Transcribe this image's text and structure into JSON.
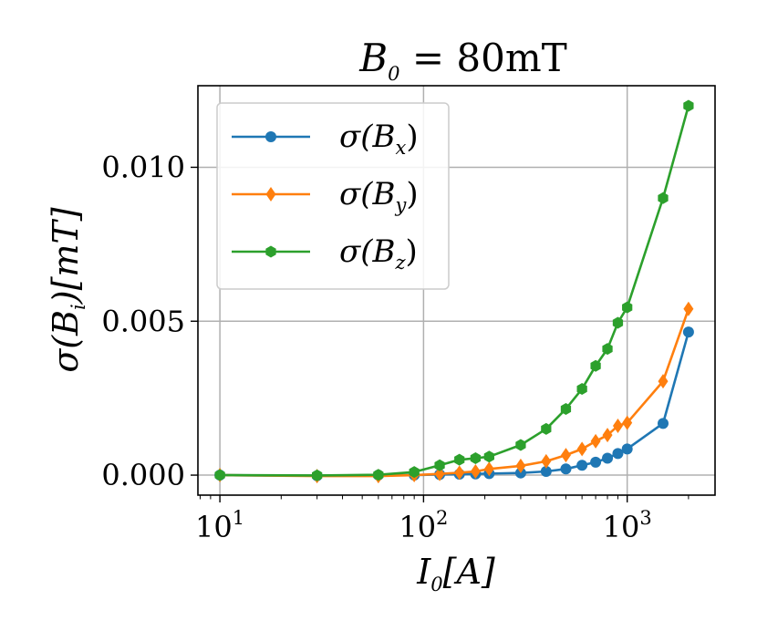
{
  "chart_data": {
    "type": "line",
    "title": {
      "main": "B",
      "sub": "0",
      "rest": " = 80mT"
    },
    "xlabel": {
      "main": "I",
      "sub": "0",
      "rest": "[A]"
    },
    "ylabel": {
      "pre": "σ(B",
      "sub": "i",
      "post": ")[mT]"
    },
    "xscale": "log",
    "xlim": [
      7.8,
      2700
    ],
    "ylim": [
      -0.00065,
      0.01265
    ],
    "x_ticks": [
      {
        "value": 10,
        "base": "10",
        "exp": "1"
      },
      {
        "value": 100,
        "base": "10",
        "exp": "2"
      },
      {
        "value": 1000,
        "base": "10",
        "exp": "3"
      }
    ],
    "y_ticks": [
      {
        "value": 0.0,
        "label": "0.000"
      },
      {
        "value": 0.005,
        "label": "0.005"
      },
      {
        "value": 0.01,
        "label": "0.010"
      }
    ],
    "grid": true,
    "legend_position": "top-left",
    "series": [
      {
        "name": "σ(B_x)",
        "legend": {
          "pre": "σ(B",
          "sub": "x",
          "post": ")"
        },
        "color": "#1f77b4",
        "marker": "circle",
        "x": [
          10,
          30,
          60,
          90,
          120,
          150,
          180,
          210,
          300,
          400,
          500,
          600,
          700,
          800,
          900,
          1000,
          1500,
          2000
        ],
        "y": [
          0.0,
          -2e-05,
          0.0,
          0.0,
          2e-05,
          3e-05,
          4e-05,
          5e-05,
          7e-05,
          0.00012,
          0.0002,
          0.00032,
          0.00042,
          0.00055,
          0.0007,
          0.00085,
          0.00168,
          0.00465
        ]
      },
      {
        "name": "σ(B_y)",
        "legend": {
          "pre": "σ(B",
          "sub": "y",
          "post": ")"
        },
        "color": "#ff7f0e",
        "marker": "diamond",
        "x": [
          10,
          30,
          60,
          90,
          120,
          150,
          180,
          210,
          300,
          400,
          500,
          600,
          700,
          800,
          900,
          1000,
          1500,
          2000
        ],
        "y": [
          0.0,
          -3e-05,
          -3e-05,
          0.0,
          4e-05,
          8e-05,
          0.00012,
          0.0002,
          0.0003,
          0.00045,
          0.00065,
          0.00085,
          0.0011,
          0.0013,
          0.0016,
          0.0017,
          0.00305,
          0.0054
        ]
      },
      {
        "name": "σ(B_z)",
        "legend": {
          "pre": "σ(B",
          "sub": "z",
          "post": ")"
        },
        "color": "#2ca02c",
        "marker": "hexagon",
        "x": [
          10,
          30,
          60,
          90,
          120,
          150,
          180,
          210,
          300,
          400,
          500,
          600,
          700,
          800,
          900,
          1000,
          1500,
          2000
        ],
        "y": [
          0.0,
          -1e-05,
          1e-05,
          0.0001,
          0.00032,
          0.0005,
          0.00055,
          0.0006,
          0.00098,
          0.0015,
          0.00215,
          0.0028,
          0.00355,
          0.0041,
          0.00495,
          0.00545,
          0.009,
          0.012
        ]
      }
    ]
  }
}
